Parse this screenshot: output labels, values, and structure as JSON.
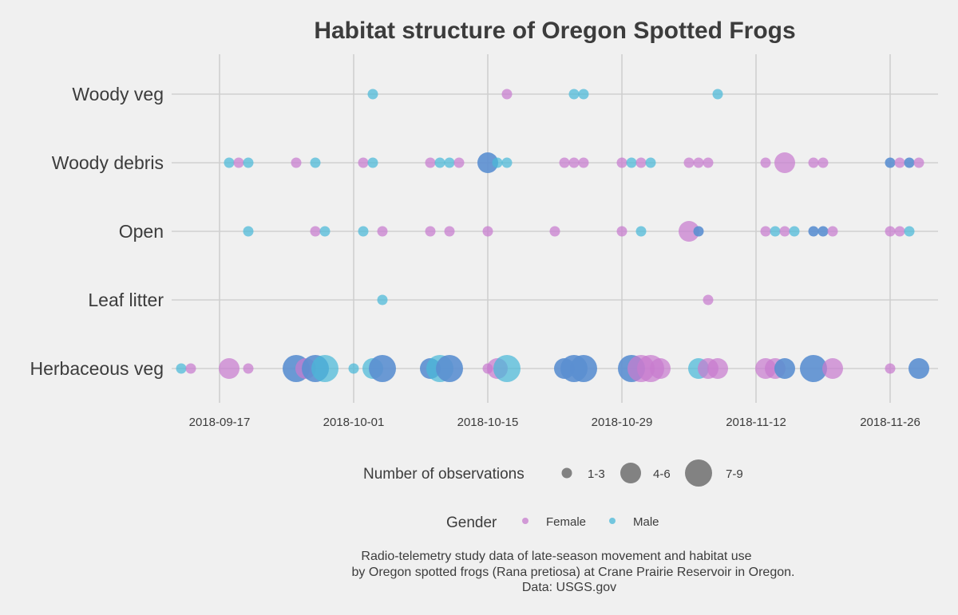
{
  "chart_data": {
    "type": "scatter",
    "title": "Habitat structure of Oregon Spotted Frogs",
    "xlabel": "",
    "ylabel": "",
    "grid": true,
    "x_axis": {
      "type": "date",
      "range": [
        "2018-09-12",
        "2018-12-01"
      ],
      "ticks": [
        "2018-09-17",
        "2018-10-01",
        "2018-10-15",
        "2018-10-29",
        "2018-11-12",
        "2018-11-26"
      ]
    },
    "y_categories": [
      "Herbaceous veg",
      "Leaf litter",
      "Open",
      "Woody debris",
      "Woody veg"
    ],
    "size_legend": {
      "title": "Number of observations",
      "levels": [
        {
          "label": "1-3",
          "level": 1
        },
        {
          "label": "4-6",
          "level": 2
        },
        {
          "label": "7-9",
          "level": 3
        }
      ]
    },
    "color_legend": {
      "title": "Gender",
      "entries": [
        {
          "label": "Female",
          "color": "#c77cce"
        },
        {
          "label": "Male",
          "color": "#4ab8d8"
        }
      ]
    },
    "overlap_color": "#5b8fd0",
    "points": [
      {
        "date": "2018-10-03",
        "habitat": "Woody veg",
        "gender": "Male",
        "size": 1
      },
      {
        "date": "2018-10-17",
        "habitat": "Woody veg",
        "gender": "Female",
        "size": 1
      },
      {
        "date": "2018-10-24",
        "habitat": "Woody veg",
        "gender": "Male",
        "size": 1
      },
      {
        "date": "2018-10-25",
        "habitat": "Woody veg",
        "gender": "Male",
        "size": 1
      },
      {
        "date": "2018-11-08",
        "habitat": "Woody veg",
        "gender": "Male",
        "size": 1
      },
      {
        "date": "2018-09-18",
        "habitat": "Woody debris",
        "gender": "Male",
        "size": 1
      },
      {
        "date": "2018-09-19",
        "habitat": "Woody debris",
        "gender": "Female",
        "size": 1
      },
      {
        "date": "2018-09-20",
        "habitat": "Woody debris",
        "gender": "Male",
        "size": 1
      },
      {
        "date": "2018-09-25",
        "habitat": "Woody debris",
        "gender": "Female",
        "size": 1
      },
      {
        "date": "2018-09-27",
        "habitat": "Woody debris",
        "gender": "Male",
        "size": 1
      },
      {
        "date": "2018-10-02",
        "habitat": "Woody debris",
        "gender": "Female",
        "size": 1
      },
      {
        "date": "2018-10-03",
        "habitat": "Woody debris",
        "gender": "Male",
        "size": 1
      },
      {
        "date": "2018-10-09",
        "habitat": "Woody debris",
        "gender": "Female",
        "size": 1
      },
      {
        "date": "2018-10-10",
        "habitat": "Woody debris",
        "gender": "Male",
        "size": 1
      },
      {
        "date": "2018-10-11",
        "habitat": "Woody debris",
        "gender": "Male",
        "size": 1
      },
      {
        "date": "2018-10-12",
        "habitat": "Woody debris",
        "gender": "Female",
        "size": 1
      },
      {
        "date": "2018-10-15",
        "habitat": "Woody debris",
        "gender": "Male",
        "size": 2,
        "overlap": true
      },
      {
        "date": "2018-10-16",
        "habitat": "Woody debris",
        "gender": "Male",
        "size": 1
      },
      {
        "date": "2018-10-17",
        "habitat": "Woody debris",
        "gender": "Male",
        "size": 1
      },
      {
        "date": "2018-10-23",
        "habitat": "Woody debris",
        "gender": "Female",
        "size": 1
      },
      {
        "date": "2018-10-24",
        "habitat": "Woody debris",
        "gender": "Female",
        "size": 1
      },
      {
        "date": "2018-10-25",
        "habitat": "Woody debris",
        "gender": "Female",
        "size": 1
      },
      {
        "date": "2018-10-29",
        "habitat": "Woody debris",
        "gender": "Female",
        "size": 1
      },
      {
        "date": "2018-10-30",
        "habitat": "Woody debris",
        "gender": "Male",
        "size": 1
      },
      {
        "date": "2018-10-31",
        "habitat": "Woody debris",
        "gender": "Female",
        "size": 1
      },
      {
        "date": "2018-11-01",
        "habitat": "Woody debris",
        "gender": "Male",
        "size": 1
      },
      {
        "date": "2018-11-05",
        "habitat": "Woody debris",
        "gender": "Female",
        "size": 1
      },
      {
        "date": "2018-11-06",
        "habitat": "Woody debris",
        "gender": "Female",
        "size": 1
      },
      {
        "date": "2018-11-07",
        "habitat": "Woody debris",
        "gender": "Female",
        "size": 1
      },
      {
        "date": "2018-11-13",
        "habitat": "Woody debris",
        "gender": "Female",
        "size": 1
      },
      {
        "date": "2018-11-15",
        "habitat": "Woody debris",
        "gender": "Female",
        "size": 2
      },
      {
        "date": "2018-11-18",
        "habitat": "Woody debris",
        "gender": "Female",
        "size": 1
      },
      {
        "date": "2018-11-19",
        "habitat": "Woody debris",
        "gender": "Female",
        "size": 1
      },
      {
        "date": "2018-11-26",
        "habitat": "Woody debris",
        "gender": "Male",
        "size": 1,
        "overlap": true
      },
      {
        "date": "2018-11-27",
        "habitat": "Woody debris",
        "gender": "Female",
        "size": 1
      },
      {
        "date": "2018-11-28",
        "habitat": "Woody debris",
        "gender": "Male",
        "size": 1,
        "overlap": true
      },
      {
        "date": "2018-11-29",
        "habitat": "Woody debris",
        "gender": "Female",
        "size": 1
      },
      {
        "date": "2018-09-20",
        "habitat": "Open",
        "gender": "Male",
        "size": 1
      },
      {
        "date": "2018-09-27",
        "habitat": "Open",
        "gender": "Female",
        "size": 1
      },
      {
        "date": "2018-09-28",
        "habitat": "Open",
        "gender": "Male",
        "size": 1
      },
      {
        "date": "2018-10-02",
        "habitat": "Open",
        "gender": "Male",
        "size": 1
      },
      {
        "date": "2018-10-04",
        "habitat": "Open",
        "gender": "Female",
        "size": 1
      },
      {
        "date": "2018-10-09",
        "habitat": "Open",
        "gender": "Female",
        "size": 1
      },
      {
        "date": "2018-10-11",
        "habitat": "Open",
        "gender": "Female",
        "size": 1
      },
      {
        "date": "2018-10-15",
        "habitat": "Open",
        "gender": "Female",
        "size": 1
      },
      {
        "date": "2018-10-22",
        "habitat": "Open",
        "gender": "Female",
        "size": 1
      },
      {
        "date": "2018-10-29",
        "habitat": "Open",
        "gender": "Female",
        "size": 1
      },
      {
        "date": "2018-10-31",
        "habitat": "Open",
        "gender": "Male",
        "size": 1
      },
      {
        "date": "2018-11-05",
        "habitat": "Open",
        "gender": "Female",
        "size": 2
      },
      {
        "date": "2018-11-06",
        "habitat": "Open",
        "gender": "Male",
        "size": 1,
        "overlap": true
      },
      {
        "date": "2018-11-13",
        "habitat": "Open",
        "gender": "Female",
        "size": 1
      },
      {
        "date": "2018-11-14",
        "habitat": "Open",
        "gender": "Male",
        "size": 1
      },
      {
        "date": "2018-11-15",
        "habitat": "Open",
        "gender": "Female",
        "size": 1
      },
      {
        "date": "2018-11-16",
        "habitat": "Open",
        "gender": "Male",
        "size": 1
      },
      {
        "date": "2018-11-18",
        "habitat": "Open",
        "gender": "Male",
        "size": 1,
        "overlap": true
      },
      {
        "date": "2018-11-19",
        "habitat": "Open",
        "gender": "Male",
        "size": 1,
        "overlap": true
      },
      {
        "date": "2018-11-20",
        "habitat": "Open",
        "gender": "Female",
        "size": 1
      },
      {
        "date": "2018-11-26",
        "habitat": "Open",
        "gender": "Female",
        "size": 1
      },
      {
        "date": "2018-11-27",
        "habitat": "Open",
        "gender": "Female",
        "size": 1
      },
      {
        "date": "2018-11-28",
        "habitat": "Open",
        "gender": "Male",
        "size": 1
      },
      {
        "date": "2018-10-04",
        "habitat": "Leaf litter",
        "gender": "Male",
        "size": 1
      },
      {
        "date": "2018-11-07",
        "habitat": "Leaf litter",
        "gender": "Female",
        "size": 1
      },
      {
        "date": "2018-09-13",
        "habitat": "Herbaceous veg",
        "gender": "Male",
        "size": 1
      },
      {
        "date": "2018-09-14",
        "habitat": "Herbaceous veg",
        "gender": "Female",
        "size": 1
      },
      {
        "date": "2018-09-18",
        "habitat": "Herbaceous veg",
        "gender": "Female",
        "size": 2
      },
      {
        "date": "2018-09-20",
        "habitat": "Herbaceous veg",
        "gender": "Female",
        "size": 1
      },
      {
        "date": "2018-09-25",
        "habitat": "Herbaceous veg",
        "gender": "Male",
        "size": 3,
        "overlap": true
      },
      {
        "date": "2018-09-26",
        "habitat": "Herbaceous veg",
        "gender": "Female",
        "size": 2
      },
      {
        "date": "2018-09-27",
        "habitat": "Herbaceous veg",
        "gender": "Male",
        "size": 3,
        "overlap": true
      },
      {
        "date": "2018-09-28",
        "habitat": "Herbaceous veg",
        "gender": "Male",
        "size": 3
      },
      {
        "date": "2018-10-01",
        "habitat": "Herbaceous veg",
        "gender": "Male",
        "size": 1
      },
      {
        "date": "2018-10-03",
        "habitat": "Herbaceous veg",
        "gender": "Male",
        "size": 2
      },
      {
        "date": "2018-10-04",
        "habitat": "Herbaceous veg",
        "gender": "Female",
        "size": 3,
        "overlap": true
      },
      {
        "date": "2018-10-09",
        "habitat": "Herbaceous veg",
        "gender": "Male",
        "size": 2,
        "overlap": true
      },
      {
        "date": "2018-10-10",
        "habitat": "Herbaceous veg",
        "gender": "Male",
        "size": 3
      },
      {
        "date": "2018-10-11",
        "habitat": "Herbaceous veg",
        "gender": "Male",
        "size": 3,
        "overlap": true
      },
      {
        "date": "2018-10-15",
        "habitat": "Herbaceous veg",
        "gender": "Female",
        "size": 1
      },
      {
        "date": "2018-10-16",
        "habitat": "Herbaceous veg",
        "gender": "Female",
        "size": 2
      },
      {
        "date": "2018-10-17",
        "habitat": "Herbaceous veg",
        "gender": "Male",
        "size": 3
      },
      {
        "date": "2018-10-23",
        "habitat": "Herbaceous veg",
        "gender": "Male",
        "size": 2,
        "overlap": true
      },
      {
        "date": "2018-10-24",
        "habitat": "Herbaceous veg",
        "gender": "Female",
        "size": 3,
        "overlap": true
      },
      {
        "date": "2018-10-25",
        "habitat": "Herbaceous veg",
        "gender": "Male",
        "size": 3,
        "overlap": true
      },
      {
        "date": "2018-10-30",
        "habitat": "Herbaceous veg",
        "gender": "Male",
        "size": 3,
        "overlap": true
      },
      {
        "date": "2018-10-31",
        "habitat": "Herbaceous veg",
        "gender": "Female",
        "size": 3
      },
      {
        "date": "2018-11-01",
        "habitat": "Herbaceous veg",
        "gender": "Female",
        "size": 3
      },
      {
        "date": "2018-11-02",
        "habitat": "Herbaceous veg",
        "gender": "Female",
        "size": 2
      },
      {
        "date": "2018-11-06",
        "habitat": "Herbaceous veg",
        "gender": "Male",
        "size": 2
      },
      {
        "date": "2018-11-07",
        "habitat": "Herbaceous veg",
        "gender": "Female",
        "size": 2
      },
      {
        "date": "2018-11-08",
        "habitat": "Herbaceous veg",
        "gender": "Female",
        "size": 2
      },
      {
        "date": "2018-11-13",
        "habitat": "Herbaceous veg",
        "gender": "Female",
        "size": 2
      },
      {
        "date": "2018-11-14",
        "habitat": "Herbaceous veg",
        "gender": "Female",
        "size": 2
      },
      {
        "date": "2018-11-15",
        "habitat": "Herbaceous veg",
        "gender": "Male",
        "size": 2,
        "overlap": true
      },
      {
        "date": "2018-11-18",
        "habitat": "Herbaceous veg",
        "gender": "Male",
        "size": 3,
        "overlap": true
      },
      {
        "date": "2018-11-20",
        "habitat": "Herbaceous veg",
        "gender": "Female",
        "size": 2
      },
      {
        "date": "2018-11-26",
        "habitat": "Herbaceous veg",
        "gender": "Female",
        "size": 1
      },
      {
        "date": "2018-11-29",
        "habitat": "Herbaceous veg",
        "gender": "Male",
        "size": 2,
        "overlap": true
      }
    ]
  },
  "caption": {
    "line1": "Radio-telemetry study data of late-season movement and habitat use",
    "line2": "by Oregon spotted frogs (Rana pretiosa) at Crane Prairie Reservoir in Oregon.",
    "line3": "Data: USGS.gov"
  }
}
